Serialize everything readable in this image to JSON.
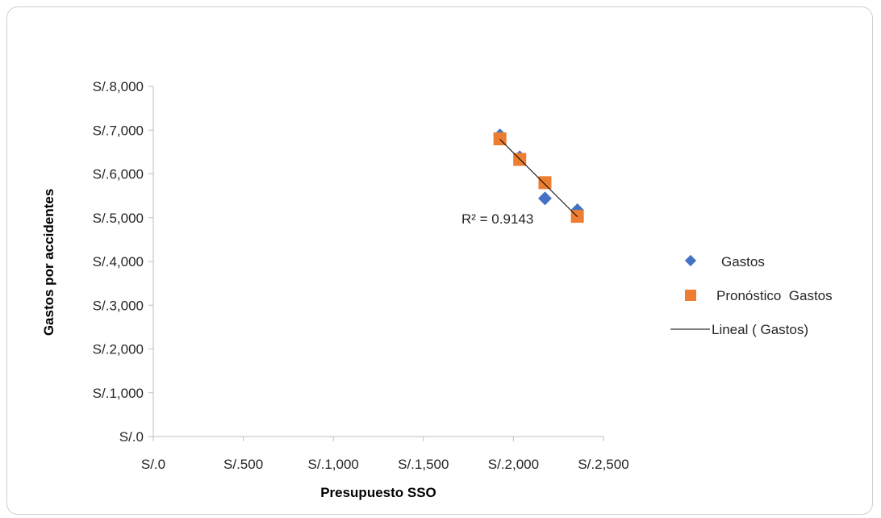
{
  "chart_data": {
    "type": "scatter",
    "xlabel": "Presupuesto SSO",
    "ylabel": "Gastos por accidentes",
    "xlim": [
      0,
      2500
    ],
    "ylim": [
      0,
      8000
    ],
    "x_ticks": [
      "S/.0",
      "S/.500",
      "S/.1,000",
      "S/.1,500",
      "S/.2,000",
      "S/.2,500"
    ],
    "y_ticks": [
      "S/.0",
      "S/.1,000",
      "S/.2,000",
      "S/.3,000",
      "S/.4,000",
      "S/.5,000",
      "S/.6,000",
      "S/.7,000",
      "S/.8,000"
    ],
    "grid": false,
    "legend_position": "right",
    "series": [
      {
        "name": "Gastos",
        "marker": "diamond",
        "color": "#4472C4",
        "points": [
          {
            "x": 1925,
            "y": 6880
          },
          {
            "x": 2035,
            "y": 6380
          },
          {
            "x": 2175,
            "y": 5440
          },
          {
            "x": 2355,
            "y": 5170
          }
        ]
      },
      {
        "name": "Pronóstico  Gastos",
        "marker": "square",
        "color": "#ED7D31",
        "points": [
          {
            "x": 1925,
            "y": 6800
          },
          {
            "x": 2035,
            "y": 6330
          },
          {
            "x": 2175,
            "y": 5800
          },
          {
            "x": 2355,
            "y": 5030
          }
        ]
      }
    ],
    "trendline": {
      "name": "Lineal ( Gastos)",
      "type": "linear",
      "color": "#000000",
      "from": {
        "x": 1925,
        "y": 6790
      },
      "to": {
        "x": 2355,
        "y": 5020
      },
      "r_squared_label": "R² = 0.9143"
    }
  }
}
